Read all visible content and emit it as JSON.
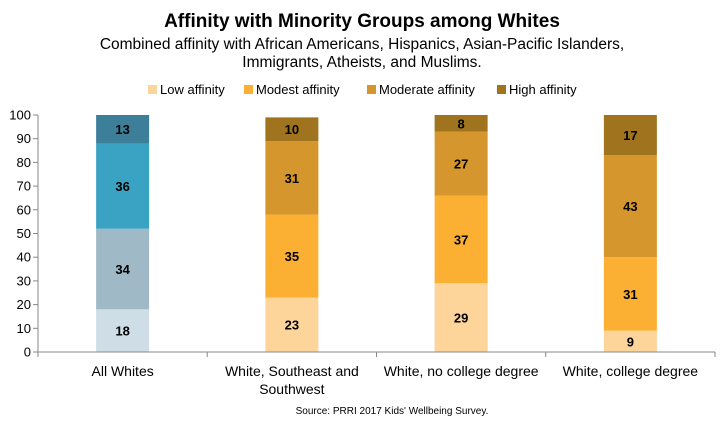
{
  "chart_data": {
    "type": "bar",
    "stacked": true,
    "title": "Affinity with Minority Groups among Whites",
    "subtitle_line1": "Combined affinity with African Americans, Hispanics, Asian-Pacific Islanders,",
    "subtitle_line2": "Immigrants, Atheists, and Muslims.",
    "categories": [
      [
        "All Whites"
      ],
      [
        "White, Southeast and",
        "Southwest"
      ],
      [
        "White, no college degree"
      ],
      [
        "White, college degree"
      ]
    ],
    "series": [
      {
        "name": "Low affinity",
        "values": [
          18,
          23,
          29,
          9
        ],
        "color": "#fdd49a"
      },
      {
        "name": "Modest affinity",
        "values": [
          34,
          35,
          37,
          31
        ],
        "color": "#fbb034"
      },
      {
        "name": "Moderate affinity",
        "values": [
          36,
          31,
          27,
          43
        ],
        "color": "#d6962e"
      },
      {
        "name": "High affinity",
        "values": [
          13,
          10,
          8,
          17
        ],
        "color": "#a0741e"
      }
    ],
    "first_category_colors": [
      "#cfdde6",
      "#9fbac6",
      "#3aa3c4",
      "#3d7e99"
    ],
    "ylim": [
      0,
      100
    ],
    "yticks": [
      0,
      10,
      20,
      30,
      40,
      50,
      60,
      70,
      80,
      90,
      100
    ],
    "legend_position": "top",
    "grid": false,
    "source": "Source: PRRI 2017 Kids' Wellbeing Survey."
  }
}
